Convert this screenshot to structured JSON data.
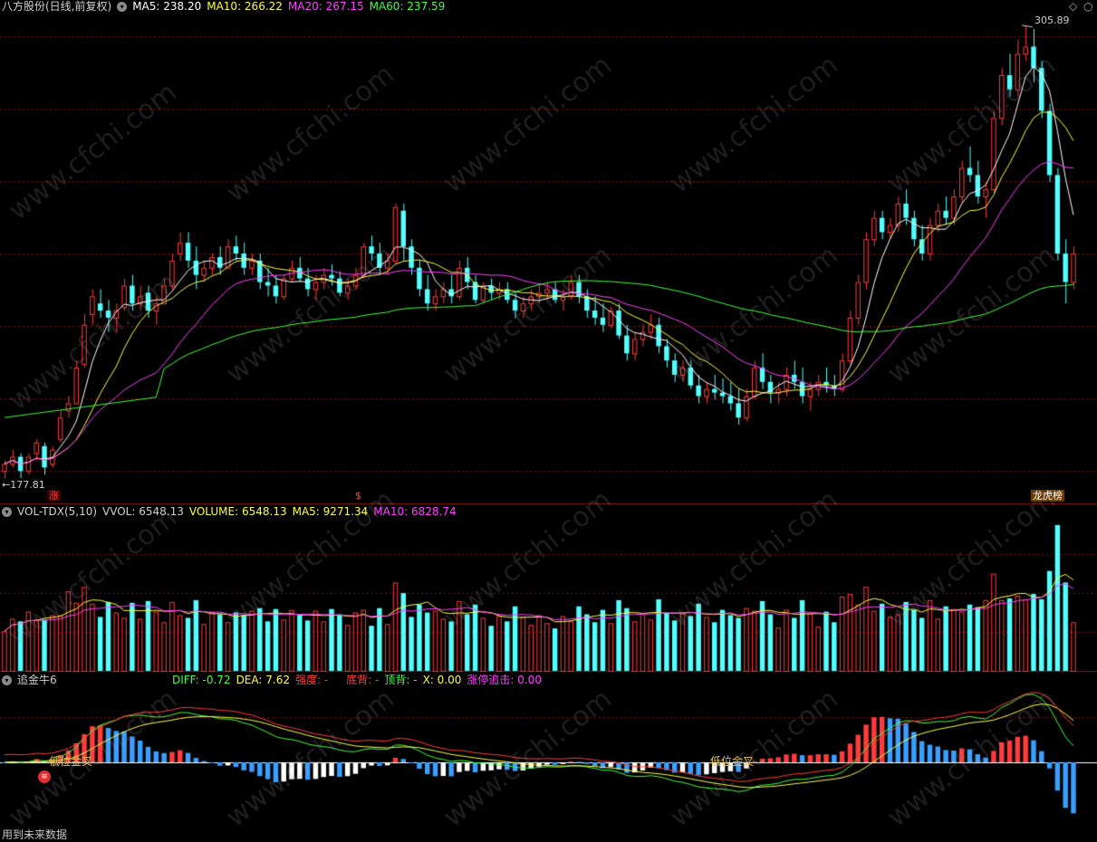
{
  "colors": {
    "bg": "#000000",
    "up": "#ff3b3b",
    "down": "#54ffff",
    "ma5": "#ffffff",
    "ma10": "#ffff40",
    "ma20": "#ff40ff",
    "ma60": "#40ff40",
    "grid": "#7a1010",
    "blue_bar": "#3aa0ff",
    "white_bar": "#ffffff",
    "label_gold": "#e8c050"
  },
  "main_panel": {
    "title": "八方股份(日线,前复权)",
    "ma5_label": "MA5: 238.20",
    "ma10_label": "MA10: 266.22",
    "ma20_label": "MA20: 267.15",
    "ma60_label": "MA60: 237.59",
    "high_label": "305.89",
    "low_label": "177.81",
    "tag_zhang": "涨",
    "tag_money": "$",
    "tag_longhu": "龙虎榜"
  },
  "vol_panel": {
    "title": "VOL-TDX(5,10)",
    "vvol": "VVOL: 6548.13",
    "volume": "VOLUME: 6548.13",
    "ma5": "MA5: 9271.34",
    "ma10": "MA10: 6828.74"
  },
  "ind_panel": {
    "title": "追金牛6",
    "diff": "DIFF: -0.72",
    "dea": "DEA: 7.62",
    "strength": "强度: -",
    "bottom": "底背: -",
    "top": "顶背: -",
    "x": "X: 0.00",
    "chase": "涨停追击: 0.00",
    "cross1": "低位金叉",
    "cross2": "低位金叉"
  },
  "footer": "用到未来数据",
  "watermark": "www.cfchi.com",
  "icons": [
    "collapse-icon",
    "diamond-icon",
    "circle-icon"
  ],
  "chart_data": {
    "type": "candlestick",
    "price_range": [
      177.81,
      305.89
    ],
    "candles": [
      [
        181,
        184,
        179,
        183
      ],
      [
        183,
        187,
        182,
        185
      ],
      [
        185,
        186,
        179,
        181
      ],
      [
        181,
        186,
        180,
        185
      ],
      [
        186,
        190,
        184,
        189
      ],
      [
        188,
        189,
        180,
        182
      ],
      [
        183,
        188,
        182,
        187
      ],
      [
        190,
        198,
        189,
        196
      ],
      [
        198,
        202,
        196,
        200
      ],
      [
        200,
        212,
        200,
        210
      ],
      [
        211,
        225,
        210,
        222
      ],
      [
        225,
        232,
        222,
        230
      ],
      [
        228,
        232,
        224,
        226
      ],
      [
        226,
        229,
        220,
        224
      ],
      [
        224,
        228,
        220,
        226
      ],
      [
        227,
        235,
        226,
        233
      ],
      [
        233,
        236,
        226,
        228
      ],
      [
        228,
        233,
        226,
        230
      ],
      [
        231,
        233,
        224,
        226
      ],
      [
        226,
        230,
        222,
        228
      ],
      [
        228,
        235,
        228,
        233
      ],
      [
        233,
        242,
        232,
        240
      ],
      [
        242,
        248,
        240,
        245
      ],
      [
        245,
        248,
        238,
        240
      ],
      [
        240,
        244,
        232,
        236
      ],
      [
        236,
        240,
        234,
        238
      ],
      [
        238,
        242,
        236,
        241
      ],
      [
        241,
        244,
        236,
        238
      ],
      [
        238,
        246,
        238,
        244
      ],
      [
        244,
        247,
        240,
        242
      ],
      [
        242,
        245,
        236,
        238
      ],
      [
        238,
        242,
        236,
        240
      ],
      [
        240,
        242,
        232,
        234
      ],
      [
        234,
        238,
        230,
        233
      ],
      [
        233,
        236,
        228,
        230
      ],
      [
        230,
        236,
        229,
        235
      ],
      [
        235,
        240,
        234,
        238
      ],
      [
        238,
        241,
        234,
        235
      ],
      [
        235,
        238,
        230,
        232
      ],
      [
        232,
        236,
        229,
        234
      ],
      [
        234,
        238,
        232,
        236
      ],
      [
        236,
        239,
        233,
        235
      ],
      [
        235,
        237,
        230,
        231
      ],
      [
        231,
        235,
        229,
        233
      ],
      [
        233,
        238,
        232,
        236
      ],
      [
        236,
        245,
        235,
        244
      ],
      [
        244,
        247,
        240,
        242
      ],
      [
        242,
        245,
        236,
        238
      ],
      [
        238,
        242,
        236,
        240
      ],
      [
        240,
        256,
        239,
        255
      ],
      [
        254,
        256,
        240,
        244
      ],
      [
        244,
        246,
        236,
        238
      ],
      [
        238,
        240,
        230,
        232
      ],
      [
        232,
        236,
        226,
        228
      ],
      [
        228,
        232,
        226,
        230
      ],
      [
        230,
        234,
        228,
        232
      ],
      [
        232,
        236,
        228,
        230
      ],
      [
        230,
        240,
        229,
        238
      ],
      [
        238,
        241,
        232,
        234
      ],
      [
        234,
        236,
        228,
        229
      ],
      [
        229,
        234,
        228,
        233
      ],
      [
        233,
        235,
        229,
        231
      ],
      [
        231,
        234,
        229,
        232
      ],
      [
        232,
        234,
        228,
        229
      ],
      [
        229,
        231,
        224,
        226
      ],
      [
        226,
        230,
        224,
        228
      ],
      [
        228,
        232,
        226,
        230
      ],
      [
        230,
        233,
        228,
        231
      ],
      [
        231,
        234,
        229,
        232
      ],
      [
        232,
        234,
        228,
        229
      ],
      [
        229,
        232,
        226,
        230
      ],
      [
        230,
        236,
        229,
        234
      ],
      [
        234,
        236,
        228,
        230
      ],
      [
        230,
        232,
        224,
        226
      ],
      [
        226,
        230,
        222,
        224
      ],
      [
        224,
        228,
        220,
        222
      ],
      [
        222,
        227,
        221,
        226
      ],
      [
        226,
        228,
        218,
        219
      ],
      [
        219,
        222,
        212,
        214
      ],
      [
        214,
        220,
        212,
        218
      ],
      [
        218,
        222,
        216,
        220
      ],
      [
        220,
        225,
        218,
        222
      ],
      [
        222,
        224,
        214,
        216
      ],
      [
        216,
        218,
        210,
        212
      ],
      [
        212,
        214,
        206,
        208
      ],
      [
        208,
        212,
        206,
        210
      ],
      [
        210,
        212,
        204,
        205
      ],
      [
        205,
        208,
        200,
        202
      ],
      [
        202,
        206,
        200,
        204
      ],
      [
        204,
        208,
        201,
        203
      ],
      [
        203,
        207,
        200,
        202
      ],
      [
        202,
        206,
        198,
        200
      ],
      [
        200,
        204,
        194,
        196
      ],
      [
        196,
        204,
        195,
        202
      ],
      [
        202,
        212,
        201,
        210
      ],
      [
        210,
        214,
        204,
        206
      ],
      [
        206,
        208,
        200,
        203
      ],
      [
        203,
        206,
        200,
        204
      ],
      [
        204,
        210,
        202,
        208
      ],
      [
        208,
        212,
        204,
        206
      ],
      [
        206,
        210,
        200,
        202
      ],
      [
        202,
        206,
        198,
        204
      ],
      [
        204,
        208,
        202,
        206
      ],
      [
        206,
        210,
        203,
        205
      ],
      [
        205,
        208,
        202,
        204
      ],
      [
        204,
        214,
        203,
        212
      ],
      [
        212,
        226,
        211,
        224
      ],
      [
        224,
        236,
        222,
        234
      ],
      [
        234,
        248,
        232,
        246
      ],
      [
        246,
        254,
        244,
        252
      ],
      [
        252,
        254,
        246,
        248
      ],
      [
        248,
        252,
        246,
        250
      ],
      [
        250,
        258,
        248,
        256
      ],
      [
        256,
        260,
        250,
        252
      ],
      [
        252,
        254,
        244,
        246
      ],
      [
        246,
        250,
        240,
        242
      ],
      [
        242,
        252,
        240,
        250
      ],
      [
        250,
        256,
        248,
        254
      ],
      [
        254,
        258,
        250,
        252
      ],
      [
        252,
        260,
        250,
        258
      ],
      [
        258,
        268,
        256,
        266
      ],
      [
        266,
        272,
        262,
        264
      ],
      [
        264,
        268,
        256,
        258
      ],
      [
        258,
        262,
        252,
        260
      ],
      [
        260,
        282,
        259,
        280
      ],
      [
        280,
        294,
        278,
        292
      ],
      [
        292,
        298,
        286,
        288
      ],
      [
        288,
        302,
        286,
        298
      ],
      [
        298,
        306,
        296,
        300
      ],
      [
        300,
        305,
        290,
        294
      ],
      [
        294,
        296,
        280,
        282
      ],
      [
        282,
        284,
        262,
        264
      ],
      [
        264,
        266,
        240,
        242
      ],
      [
        242,
        246,
        228,
        234
      ],
      [
        234,
        244,
        232,
        242
      ]
    ],
    "ma_series": [
      {
        "name": "MA5",
        "last": 238.2
      },
      {
        "name": "MA10",
        "last": 266.22
      },
      {
        "name": "MA20",
        "last": 267.15
      },
      {
        "name": "MA60",
        "last": 237.59
      }
    ],
    "volume_last": 6548.13,
    "diff_last": -0.72,
    "dea_last": 7.62
  }
}
